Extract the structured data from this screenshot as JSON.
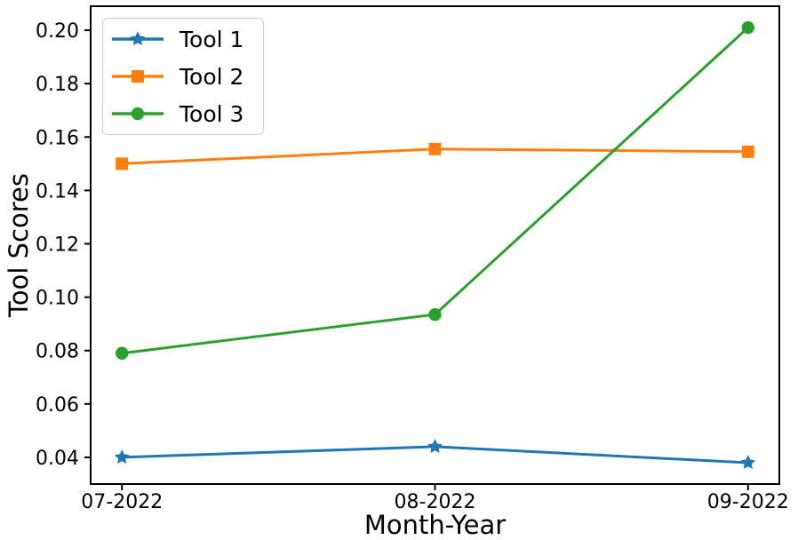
{
  "chart_data": {
    "type": "line",
    "xlabel": "Month-Year",
    "ylabel": "Tool Scores",
    "categories": [
      "07-2022",
      "08-2022",
      "09-2022"
    ],
    "series": [
      {
        "name": "Tool 1",
        "color": "#1f77b4",
        "marker": "star",
        "values": [
          0.04,
          0.044,
          0.038
        ]
      },
      {
        "name": "Tool 2",
        "color": "#ff7f0e",
        "marker": "square",
        "values": [
          0.15,
          0.1555,
          0.1545
        ]
      },
      {
        "name": "Tool 3",
        "color": "#2ca02c",
        "marker": "circle",
        "values": [
          0.079,
          0.0935,
          0.201
        ]
      }
    ],
    "yticks": [
      0.04,
      0.06,
      0.08,
      0.1,
      0.12,
      0.14,
      0.16,
      0.18,
      0.2
    ],
    "ylim": [
      0.03,
      0.209
    ],
    "grid": false,
    "legend_position": "upper left",
    "frame_color": "#000000",
    "tick_label_color": "#000000"
  }
}
